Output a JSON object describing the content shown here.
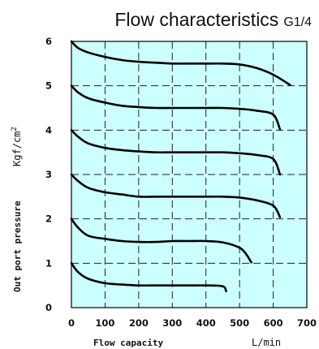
{
  "chart_data": {
    "type": "line",
    "title": "Flow characteristics",
    "subtitle": "G1/4",
    "xlabel": "Flow capacity",
    "xunit": "L/min",
    "ylabel": "Out port pressure",
    "yunit": "Kgf/cm",
    "yunit_superscript": "2",
    "xlim": [
      0,
      700
    ],
    "ylim": [
      0,
      6
    ],
    "xticks": [
      "0",
      "100",
      "200",
      "300",
      "400",
      "500",
      "600",
      "700"
    ],
    "yticks": [
      "0",
      "1",
      "2",
      "3",
      "4",
      "5",
      "6"
    ],
    "grid": true,
    "background_color": "#ccffff",
    "line_color": "#000000",
    "series": [
      {
        "x": [
          0,
          20,
          50,
          100,
          150,
          200,
          250,
          300,
          350,
          400,
          450,
          460
        ],
        "y": [
          1.0,
          0.8,
          0.65,
          0.55,
          0.52,
          0.5,
          0.5,
          0.5,
          0.5,
          0.5,
          0.48,
          0.37
        ]
      },
      {
        "x": [
          0,
          20,
          50,
          100,
          150,
          200,
          250,
          300,
          350,
          400,
          450,
          500,
          520,
          535
        ],
        "y": [
          2.0,
          1.8,
          1.62,
          1.55,
          1.5,
          1.48,
          1.48,
          1.5,
          1.5,
          1.5,
          1.47,
          1.35,
          1.2,
          1.02
        ]
      },
      {
        "x": [
          0,
          20,
          50,
          100,
          150,
          200,
          250,
          300,
          350,
          400,
          450,
          500,
          550,
          600,
          620
        ],
        "y": [
          3.0,
          2.85,
          2.7,
          2.6,
          2.55,
          2.5,
          2.5,
          2.5,
          2.5,
          2.5,
          2.5,
          2.48,
          2.42,
          2.3,
          2.04
        ]
      },
      {
        "x": [
          0,
          20,
          50,
          100,
          150,
          200,
          250,
          300,
          350,
          400,
          450,
          500,
          550,
          600,
          620
        ],
        "y": [
          4.0,
          3.85,
          3.7,
          3.6,
          3.55,
          3.52,
          3.5,
          3.5,
          3.5,
          3.5,
          3.5,
          3.48,
          3.44,
          3.35,
          3.0
        ]
      },
      {
        "x": [
          0,
          20,
          50,
          100,
          150,
          200,
          250,
          300,
          350,
          400,
          450,
          500,
          550,
          600,
          620
        ],
        "y": [
          5.0,
          4.85,
          4.72,
          4.62,
          4.55,
          4.52,
          4.5,
          4.5,
          4.5,
          4.5,
          4.5,
          4.48,
          4.44,
          4.35,
          4.02
        ]
      },
      {
        "x": [
          0,
          20,
          50,
          100,
          150,
          200,
          250,
          300,
          350,
          400,
          450,
          500,
          550,
          600,
          650
        ],
        "y": [
          6.0,
          5.85,
          5.75,
          5.65,
          5.58,
          5.54,
          5.52,
          5.5,
          5.5,
          5.5,
          5.5,
          5.48,
          5.4,
          5.25,
          5.02
        ]
      }
    ]
  }
}
